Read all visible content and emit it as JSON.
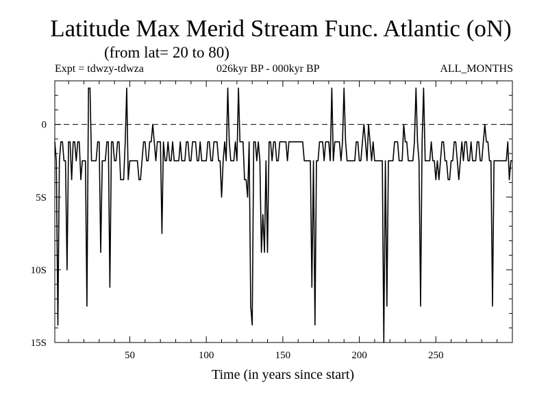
{
  "page": {
    "title": "Latitude Max Merid Stream Func. Atlantic (oN)",
    "subtitle": "(from lat= 20 to 80)",
    "expt": "Expt = tdwzy-tdwza",
    "period": "026kyr BP - 000kyr BP",
    "months": "ALL_MONTHS"
  },
  "chart_data": {
    "type": "line",
    "title": "Latitude Max Merid Stream Func. Atlantic (oN)",
    "xlabel": "Time (in years since start)",
    "ylabel": "",
    "xlim": [
      1,
      300
    ],
    "ylim": [
      -15,
      3
    ],
    "x_ticks": [
      50,
      100,
      150,
      200,
      250
    ],
    "y_ticks": [
      {
        "value": 0,
        "label": "0"
      },
      {
        "value": -5,
        "label": "5S"
      },
      {
        "value": -10,
        "label": "10S"
      },
      {
        "value": -15,
        "label": "15S"
      }
    ],
    "reference_line": {
      "y": 0,
      "style": "dashed"
    },
    "grid": false,
    "series": [
      {
        "x": [
          1,
          2,
          3,
          4,
          5,
          6,
          7,
          8,
          9,
          10,
          11,
          12,
          13,
          14,
          15,
          16,
          17,
          18,
          19,
          20,
          21,
          22,
          23,
          24,
          25,
          26,
          27,
          28,
          29,
          30,
          31,
          32,
          33,
          34,
          35,
          36,
          37,
          38,
          39,
          40,
          41,
          42,
          43,
          44,
          45,
          46,
          47,
          48,
          49,
          50,
          51,
          52,
          53,
          54,
          55,
          56,
          57,
          58,
          59,
          60,
          61,
          62,
          63,
          64,
          65,
          66,
          67,
          68,
          69,
          70,
          71,
          72,
          73,
          74,
          75,
          76,
          77,
          78,
          79,
          80,
          81,
          82,
          83,
          84,
          85,
          86,
          87,
          88,
          89,
          90,
          91,
          92,
          93,
          94,
          95,
          96,
          97,
          98,
          99,
          100,
          101,
          102,
          103,
          104,
          105,
          106,
          107,
          108,
          109,
          110,
          111,
          112,
          113,
          114,
          115,
          116,
          117,
          118,
          119,
          120,
          121,
          122,
          123,
          124,
          125,
          126,
          127,
          128,
          129,
          130,
          131,
          132,
          133,
          134,
          135,
          136,
          137,
          138,
          139,
          140,
          141,
          142,
          143,
          144,
          145,
          146,
          147,
          148,
          149,
          150,
          151,
          152,
          153,
          154,
          155,
          156,
          157,
          158,
          159,
          160,
          161,
          162,
          163,
          164,
          165,
          166,
          167,
          168,
          169,
          170,
          171,
          172,
          173,
          174,
          175,
          176,
          177,
          178,
          179,
          180,
          181,
          182,
          183,
          184,
          185,
          186,
          187,
          188,
          189,
          190,
          191,
          192,
          193,
          194,
          195,
          196,
          197,
          198,
          199,
          200,
          201,
          202,
          203,
          204,
          205,
          206,
          207,
          208,
          209,
          210,
          211,
          212,
          213,
          214,
          215,
          216,
          217,
          218,
          219,
          220,
          221,
          222,
          223,
          224,
          225,
          226,
          227,
          228,
          229,
          230,
          231,
          232,
          233,
          234,
          235,
          236,
          237,
          238,
          239,
          240,
          241,
          242,
          243,
          244,
          245,
          246,
          247,
          248,
          249,
          250,
          251,
          252,
          253,
          254,
          255,
          256,
          257,
          258,
          259,
          260,
          261,
          262,
          263,
          264,
          265,
          266,
          267,
          268,
          269,
          270,
          271,
          272,
          273,
          274,
          275,
          276,
          277,
          278,
          279,
          280,
          281,
          282,
          283,
          284,
          285,
          286,
          287,
          288,
          289,
          290,
          291,
          292,
          293,
          294,
          295,
          296,
          297,
          298,
          299,
          300
        ],
        "y": [
          -1.2,
          -2.5,
          -13.8,
          -2.5,
          -1.2,
          -1.2,
          -2.5,
          -2.5,
          -10,
          -1.2,
          -1.2,
          -3.8,
          -1.2,
          -1.2,
          -2.5,
          -1.2,
          -1.2,
          -3.8,
          -2.5,
          -2.5,
          -2.5,
          -12.5,
          2.5,
          2.5,
          -2.5,
          -2.5,
          -2.5,
          -2.5,
          -1.2,
          -1.2,
          -8.8,
          -2.5,
          -2.5,
          -2.5,
          -1.2,
          -1.2,
          -11.2,
          -1.2,
          -1.2,
          -2.5,
          -2.5,
          -1.2,
          -1.2,
          -3.8,
          -3.8,
          -3.8,
          -1.2,
          2.5,
          -3.8,
          -2.5,
          -2.5,
          -2.5,
          -2.5,
          -2.5,
          -2.5,
          -3.8,
          -3.8,
          -2.5,
          -1.2,
          -1.2,
          -2.5,
          -2.5,
          -1.2,
          -1.2,
          0,
          -1.2,
          -2.5,
          -1.2,
          -1.2,
          -1.2,
          -7.5,
          -1.2,
          -2.5,
          -2.5,
          -1.2,
          -2.5,
          -2.5,
          -1.2,
          -2.5,
          -2.5,
          -2.5,
          -2.5,
          -1.2,
          -2.5,
          -2.5,
          -2.5,
          -1.2,
          -1.2,
          -2.5,
          -2.5,
          -1.2,
          -1.2,
          -1.2,
          -2.5,
          -2.5,
          -1.2,
          -2.5,
          -2.5,
          -2.5,
          -2.5,
          -1.2,
          -1.2,
          -2.5,
          -2.5,
          -1.2,
          -1.2,
          -1.2,
          -2.5,
          -2.5,
          -5,
          -2.5,
          -1.2,
          -2.5,
          2.5,
          -1.2,
          -2.5,
          -2.5,
          -2.5,
          -1.2,
          -2.5,
          2.5,
          -1.2,
          -1.2,
          -1.2,
          -3.8,
          -3.8,
          -5,
          -1.2,
          -12.5,
          -13.8,
          -1.2,
          -1.2,
          -2.5,
          -1.2,
          -2.5,
          -8.8,
          -6.2,
          -8.8,
          -2.5,
          -8.8,
          -1.2,
          -1.2,
          -2.5,
          -1.2,
          -1.2,
          -2.5,
          -2.5,
          -1.2,
          -1.2,
          -1.2,
          -1.2,
          -1.2,
          -2.5,
          -1.2,
          -1.2,
          -1.2,
          -1.2,
          -1.2,
          -1.2,
          -1.2,
          -1.2,
          -1.2,
          -1.2,
          -2.5,
          -2.5,
          -2.5,
          -2.5,
          -2.5,
          -11.2,
          -2.5,
          -13.8,
          -2.5,
          -2.5,
          -1.2,
          -1.2,
          -1.2,
          -2.5,
          -1.2,
          -1.2,
          -1.2,
          -2.5,
          2.5,
          -2.5,
          -1.2,
          -1.2,
          -1.2,
          -1.2,
          -2.5,
          -1.2,
          2.5,
          -1.2,
          -2.5,
          -2.5,
          -2.5,
          -2.5,
          -2.5,
          -2.5,
          -1.2,
          -1.2,
          -2.5,
          -2.5,
          -1.2,
          0,
          -1.2,
          -2.5,
          0,
          -1.2,
          -2.5,
          -1.2,
          -2.5,
          -2.5,
          -2.5,
          -2.5,
          -2.5,
          -2.5,
          -15,
          -2.5,
          -12.5,
          -2.5,
          -2.5,
          -2.5,
          -2.5,
          -1.2,
          -1.2,
          -1.2,
          -2.5,
          -2.5,
          -2.5,
          0,
          -1.2,
          -1.2,
          -2.5,
          -2.5,
          -2.5,
          -2.5,
          -1.2,
          2.5,
          -1.2,
          -2.5,
          -12.5,
          -1.2,
          2.5,
          -2.5,
          -2.5,
          -2.5,
          -2.5,
          -1.2,
          -2.5,
          -2.5,
          -3.8,
          -2.5,
          -3.8,
          -2.5,
          -1.2,
          -1.2,
          -2.5,
          -2.5,
          -3.8,
          -3.8,
          -2.5,
          -2.5,
          -1.2,
          -1.2,
          -2.5,
          -3.8,
          -2.5,
          -1.2,
          -2.5,
          -1.2,
          -1.2,
          -2.5,
          -2.5,
          -1.2,
          -2.5,
          -2.5,
          -2.5,
          -1.2,
          -1.2,
          -2.5,
          -2.5,
          -1.2,
          0,
          -1.2,
          -1.2,
          -2.5,
          -2.5,
          -12.5,
          -2.5,
          -2.5,
          -2.5,
          -2.5,
          -2.5,
          -2.5,
          -2.5,
          -2.5,
          -2.5,
          -1.2,
          -3.8,
          -2.5,
          -2.5
        ]
      }
    ]
  }
}
